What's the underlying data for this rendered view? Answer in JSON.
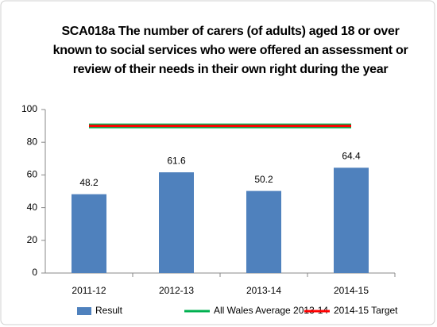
{
  "chart_data": {
    "type": "bar",
    "title": "SCA018a The number of carers (of adults) aged 18 or over known to social services who were offered an assessment or review of their needs in their own right during the year",
    "categories": [
      "2011-12",
      "2012-13",
      "2013-14",
      "2014-15"
    ],
    "series": [
      {
        "name": "Result",
        "type": "bar",
        "color": "#4f81bd",
        "values": [
          48.2,
          61.6,
          50.2,
          64.4
        ],
        "data_labels": true
      },
      {
        "name": "All Wales Average 2013-14",
        "type": "line",
        "color": "#00b050",
        "values": [
          90,
          90,
          90,
          90
        ]
      },
      {
        "name": "2014-15 Target",
        "type": "line",
        "color": "#ff0000",
        "values": [
          90,
          90,
          90,
          90
        ]
      }
    ],
    "ylim": [
      0,
      100
    ],
    "yticks": [
      0,
      20,
      40,
      60,
      80,
      100
    ],
    "grid": false,
    "legend": "bottom"
  }
}
